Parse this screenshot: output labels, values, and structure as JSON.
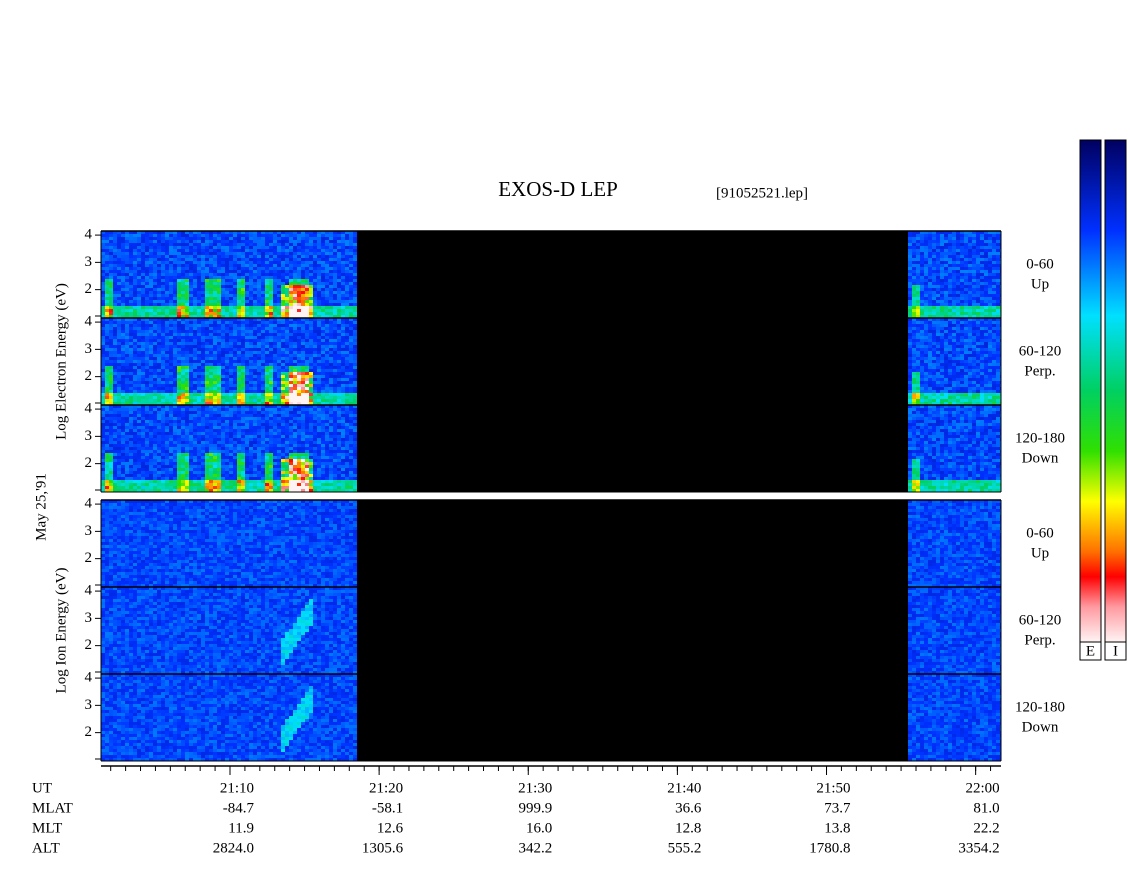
{
  "chart_data": {
    "type": "spectrogram",
    "title": "EXOS-D LEP",
    "file": "[91052521.lep]",
    "date": "May 25,'91",
    "groups": [
      {
        "label": "Log Electron Energy (eV)",
        "panels": [
          {
            "angle": "0-60",
            "direction": "Up"
          },
          {
            "angle": "60-120",
            "direction": "Perp."
          },
          {
            "angle": "120-180",
            "direction": "Down"
          }
        ]
      },
      {
        "label": "Log Ion Energy (eV)",
        "panels": [
          {
            "angle": "0-60",
            "direction": "Up"
          },
          {
            "angle": "60-120",
            "direction": "Perp."
          },
          {
            "angle": "120-180",
            "direction": "Down"
          }
        ]
      }
    ],
    "ylim": [
      0.96,
      4.15
    ],
    "yticks": [
      2,
      3,
      4
    ],
    "xlim": [
      1261.35,
      1321.7
    ],
    "xticks": [
      {
        "value": 1270,
        "label": "21:10"
      },
      {
        "value": 1280,
        "label": "21:20"
      },
      {
        "value": 1290,
        "label": "21:30"
      },
      {
        "value": 1300,
        "label": "21:40"
      },
      {
        "value": 1310,
        "label": "21:50"
      },
      {
        "value": 1320,
        "label": "22:00"
      }
    ],
    "x_label": "UT",
    "table": [
      {
        "name": "MLAT",
        "values": [
          "-84.7",
          "-58.1",
          "999.9",
          "36.6",
          "73.7",
          "81.0"
        ]
      },
      {
        "name": "MLT",
        "values": [
          "11.9",
          "12.6",
          "16.0",
          "12.8",
          "13.8",
          "22.2"
        ]
      },
      {
        "name": "ALT",
        "values": [
          "2824.0",
          "1305.6",
          "342.2",
          "555.2",
          "1780.8",
          "3354.2"
        ]
      }
    ],
    "colorbars": [
      "E",
      "I"
    ]
  }
}
